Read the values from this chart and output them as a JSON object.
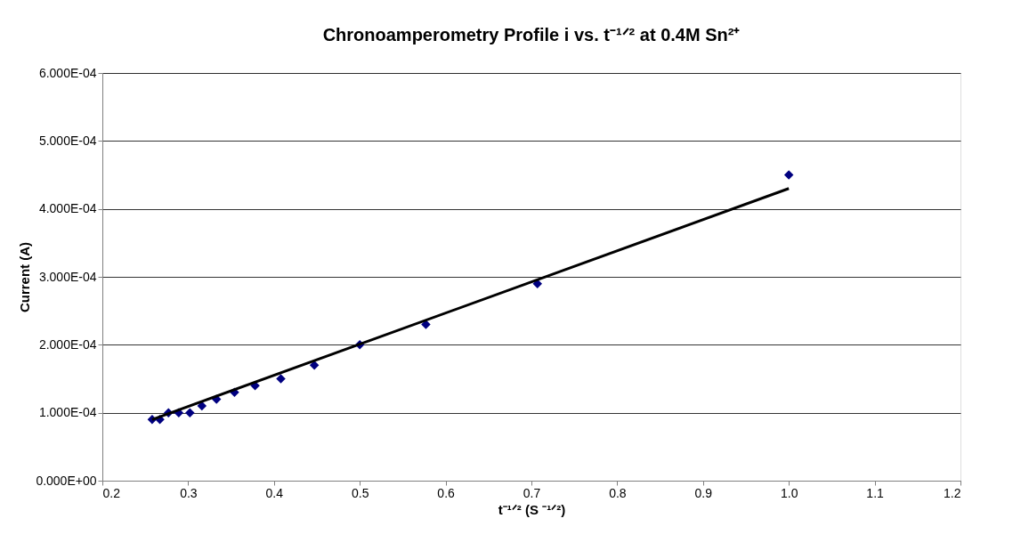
{
  "chart_data": {
    "type": "scatter",
    "title": "Chronoamperometry Profile i vs. t⁻¹ᐟ² at 0.4M Sn²⁺",
    "xlabel": "t⁻¹ᐟ² (S ⁻¹ᐟ²)",
    "ylabel": "Current (A)",
    "grid": "y",
    "xlim": [
      0.2,
      1.2
    ],
    "xticks": [
      0.2,
      0.3,
      0.4,
      0.5,
      0.6,
      0.7,
      0.8,
      0.9,
      {
        "value": 1.0,
        "label": "1.0"
      },
      1.1,
      1.2
    ],
    "ylim": [
      0,
      0.0006
    ],
    "yticks": [
      {
        "value": 0,
        "label": "0.000E+00"
      },
      {
        "value": 0.0001,
        "label": "1.000E-04"
      },
      {
        "value": 0.0002,
        "label": "2.000E-04"
      },
      {
        "value": 0.0003,
        "label": "3.000E-04"
      },
      {
        "value": 0.0004,
        "label": "4.000E-04"
      },
      {
        "value": 0.0005,
        "label": "5.000E-04"
      },
      {
        "value": 0.0006,
        "label": "6.000E-04"
      }
    ],
    "series": [
      {
        "marker": "diamond",
        "color": "#000080",
        "x": [
          1.0,
          0.707,
          0.577,
          0.5,
          0.447,
          0.408,
          0.378,
          0.354,
          0.333,
          0.316,
          0.302,
          0.289,
          0.277,
          0.267,
          0.258
        ],
        "values": [
          0.00045,
          0.00029,
          0.00023,
          0.0002,
          0.00017,
          0.00015,
          0.00014,
          0.00013,
          0.00012,
          0.00011,
          0.0001,
          0.0001,
          0.0001,
          9e-05,
          9e-05
        ]
      },
      {
        "type": "line",
        "marker": "none",
        "color": "#000000",
        "x": [
          0.258,
          1.0
        ],
        "values": [
          9e-05,
          0.00043
        ]
      }
    ]
  }
}
